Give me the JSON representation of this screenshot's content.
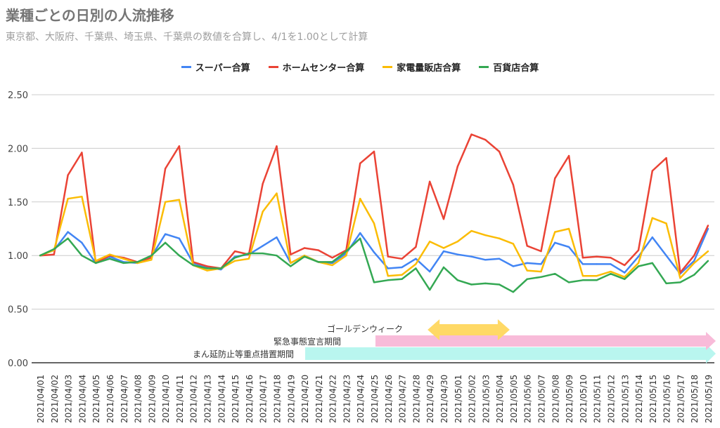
{
  "chart_data": {
    "type": "line",
    "title": "業種ごとの日別の人流推移",
    "subtitle": "東京都、大阪府、千葉県、埼玉県、千葉県の数値を合算し、4/1を1.00として計算",
    "ylim": [
      0,
      2.5
    ],
    "yticks": [
      "0.00",
      "0.50",
      "1.00",
      "1.50",
      "2.00",
      "2.50"
    ],
    "grid": true,
    "legend": "top",
    "x": [
      "2021/04/01",
      "2021/04/02",
      "2021/04/03",
      "2021/04/04",
      "2021/04/05",
      "2021/04/06",
      "2021/04/07",
      "2021/04/08",
      "2021/04/09",
      "2021/04/10",
      "2021/04/11",
      "2021/04/12",
      "2021/04/13",
      "2021/04/14",
      "2021/04/15",
      "2021/04/16",
      "2021/04/17",
      "2021/04/18",
      "2021/04/19",
      "2021/04/20",
      "2021/04/21",
      "2021/04/22",
      "2021/04/23",
      "2021/04/24",
      "2021/04/25",
      "2021/04/26",
      "2021/04/27",
      "2021/04/28",
      "2021/04/29",
      "2021/04/30",
      "2021/05/01",
      "2021/05/02",
      "2021/05/03",
      "2021/05/04",
      "2021/05/05",
      "2021/05/06",
      "2021/05/07",
      "2021/05/08",
      "2021/05/09",
      "2021/05/10",
      "2021/05/11",
      "2021/05/12",
      "2021/05/13",
      "2021/05/14",
      "2021/05/15",
      "2021/05/16",
      "2021/05/17",
      "2021/05/18",
      "2021/05/19"
    ],
    "series": [
      {
        "name": "スーパー合算",
        "color": "#4285f4",
        "values": [
          1.0,
          1.05,
          1.22,
          1.12,
          0.93,
          0.99,
          0.94,
          0.93,
          0.99,
          1.2,
          1.16,
          0.93,
          0.89,
          0.87,
          0.99,
          1.01,
          1.09,
          1.17,
          0.93,
          1.0,
          0.94,
          0.93,
          1.02,
          1.21,
          1.03,
          0.88,
          0.89,
          0.97,
          0.85,
          1.04,
          1.01,
          0.99,
          0.96,
          0.97,
          0.9,
          0.93,
          0.92,
          1.12,
          1.08,
          0.92,
          0.92,
          0.92,
          0.84,
          0.99,
          1.17,
          1.0,
          0.83,
          0.95,
          1.25
        ]
      },
      {
        "name": "ホームセンター合算",
        "color": "#ea4335",
        "values": [
          1.0,
          1.01,
          1.75,
          1.96,
          0.93,
          1.0,
          0.98,
          0.94,
          0.98,
          1.81,
          2.02,
          0.94,
          0.9,
          0.88,
          1.04,
          1.01,
          1.67,
          2.02,
          1.01,
          1.07,
          1.05,
          0.98,
          1.05,
          1.86,
          1.97,
          0.99,
          0.97,
          1.08,
          1.69,
          1.34,
          1.83,
          2.13,
          2.08,
          1.97,
          1.66,
          1.09,
          1.04,
          1.72,
          1.93,
          0.98,
          0.99,
          0.98,
          0.91,
          1.05,
          1.79,
          1.91,
          0.84,
          1.0,
          1.28
        ]
      },
      {
        "name": "家電量販店合算",
        "color": "#fbbc04",
        "values": [
          1.0,
          1.05,
          1.53,
          1.55,
          0.95,
          1.01,
          0.97,
          0.93,
          0.96,
          1.5,
          1.52,
          0.91,
          0.86,
          0.88,
          0.95,
          0.97,
          1.41,
          1.58,
          0.93,
          1.0,
          0.94,
          0.91,
          1.0,
          1.53,
          1.3,
          0.81,
          0.82,
          0.92,
          1.13,
          1.07,
          1.13,
          1.23,
          1.19,
          1.16,
          1.11,
          0.86,
          0.85,
          1.22,
          1.25,
          0.81,
          0.81,
          0.85,
          0.8,
          0.93,
          1.35,
          1.3,
          0.79,
          0.93,
          1.04
        ]
      },
      {
        "name": "百貨店合算",
        "color": "#34a853",
        "values": [
          1.0,
          1.06,
          1.16,
          1.0,
          0.93,
          0.97,
          0.93,
          0.94,
          1.0,
          1.12,
          1.0,
          0.91,
          0.88,
          0.88,
          0.98,
          1.02,
          1.02,
          1.0,
          0.9,
          0.99,
          0.94,
          0.94,
          1.04,
          1.16,
          0.75,
          0.77,
          0.78,
          0.88,
          0.68,
          0.89,
          0.77,
          0.73,
          0.74,
          0.73,
          0.66,
          0.78,
          0.8,
          0.83,
          0.75,
          0.77,
          0.77,
          0.83,
          0.78,
          0.9,
          0.93,
          0.74,
          0.75,
          0.82,
          0.95
        ]
      }
    ],
    "annotations": [
      {
        "label": "ゴールデンウィーク",
        "from": "2021/04/29",
        "to": "2021/05/05",
        "color": "#ffd966"
      },
      {
        "label": "緊急事態宣言期間",
        "from": "2021/04/25",
        "to": "2021/05/19",
        "color": "#f8bbd9"
      },
      {
        "label": "まん延防止等重点措置期間",
        "from": "2021/04/20",
        "to": "2021/05/19",
        "color": "#b9f6ef"
      }
    ]
  }
}
